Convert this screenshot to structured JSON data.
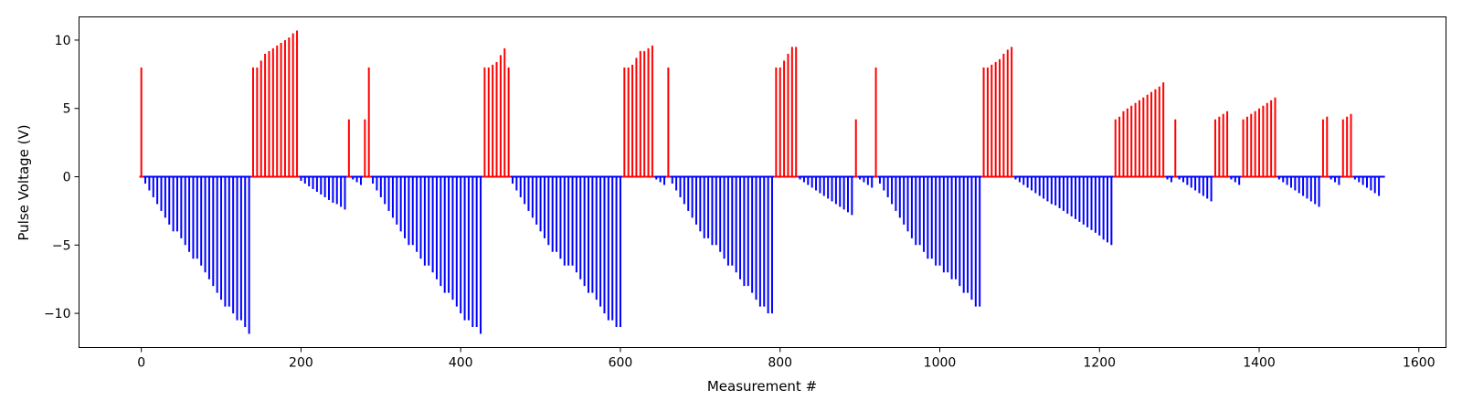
{
  "chart_data": {
    "type": "bar",
    "title": "",
    "xlabel": "Measurement #",
    "ylabel": "Pulse Voltage (V)",
    "xlim": [
      -78,
      1634
    ],
    "ylim": [
      -12.5,
      11.7
    ],
    "xticks": [
      0,
      200,
      400,
      600,
      800,
      1000,
      1200,
      1400,
      1600
    ],
    "yticks": [
      -10,
      -5,
      0,
      5,
      10
    ],
    "grid": false,
    "colors": {
      "positive": "#ff0000",
      "negative": "#0000ff"
    },
    "segments": [
      {
        "sign": "positive",
        "x": [
          0
        ],
        "values": [
          8.0
        ]
      },
      {
        "sign": "negative",
        "x": [
          5,
          10,
          15,
          20,
          25,
          30,
          35,
          40,
          45,
          50,
          55,
          60,
          65,
          70,
          75,
          80,
          85,
          90,
          95,
          100,
          105,
          110,
          115,
          120,
          125,
          130,
          135
        ],
        "values": [
          -0.5,
          -1.0,
          -1.5,
          -2.0,
          -2.5,
          -3.0,
          -3.5,
          -4.0,
          -4.0,
          -4.5,
          -5.0,
          -5.5,
          -6.0,
          -6.0,
          -6.5,
          -7.0,
          -7.5,
          -8.0,
          -8.5,
          -9.0,
          -9.5,
          -9.5,
          -10.0,
          -10.5,
          -10.5,
          -11.0,
          -11.5
        ]
      },
      {
        "sign": "positive",
        "x": [
          140,
          145,
          150,
          155,
          160,
          165,
          170,
          175,
          180,
          185,
          190,
          195
        ],
        "values": [
          8.0,
          8.0,
          8.5,
          9.0,
          9.2,
          9.4,
          9.6,
          9.8,
          10.0,
          10.2,
          10.5,
          10.7
        ]
      },
      {
        "sign": "negative",
        "x": [
          200,
          205,
          210,
          215,
          220,
          225,
          230,
          235,
          240,
          245,
          250,
          255
        ],
        "values": [
          -0.3,
          -0.5,
          -0.7,
          -0.9,
          -1.1,
          -1.3,
          -1.5,
          -1.7,
          -1.9,
          -2.0,
          -2.2,
          -2.4
        ]
      },
      {
        "sign": "positive",
        "x": [
          260
        ],
        "values": [
          4.2
        ]
      },
      {
        "sign": "negative",
        "x": [
          265,
          270,
          275
        ],
        "values": [
          -0.2,
          -0.4,
          -0.6
        ]
      },
      {
        "sign": "positive",
        "x": [
          280,
          285
        ],
        "values": [
          4.2,
          8.0
        ]
      },
      {
        "sign": "negative",
        "x": [
          290,
          295,
          300,
          305,
          310,
          315,
          320,
          325,
          330,
          335,
          340,
          345,
          350,
          355,
          360,
          365,
          370,
          375,
          380,
          385,
          390,
          395,
          400,
          405,
          410,
          415,
          420,
          425
        ],
        "values": [
          -0.5,
          -1.0,
          -1.5,
          -2.0,
          -2.5,
          -3.0,
          -3.5,
          -4.0,
          -4.5,
          -5.0,
          -5.0,
          -5.5,
          -6.0,
          -6.5,
          -6.5,
          -7.0,
          -7.5,
          -8.0,
          -8.5,
          -8.5,
          -9.0,
          -9.5,
          -10.0,
          -10.5,
          -10.5,
          -11.0,
          -11.0,
          -11.5
        ]
      },
      {
        "sign": "positive",
        "x": [
          430,
          435,
          440,
          445,
          450,
          455,
          460
        ],
        "values": [
          8.0,
          8.0,
          8.2,
          8.4,
          8.9,
          9.4,
          8.0
        ]
      },
      {
        "sign": "negative",
        "x": [
          465,
          470,
          475,
          480,
          485,
          490,
          495,
          500,
          505,
          510,
          515,
          520,
          525,
          530,
          535,
          540,
          545,
          550,
          555,
          560,
          565,
          570,
          575,
          580,
          585,
          590,
          595,
          600
        ],
        "values": [
          -0.5,
          -1.0,
          -1.5,
          -2.0,
          -2.5,
          -3.0,
          -3.5,
          -4.0,
          -4.5,
          -5.0,
          -5.5,
          -5.5,
          -6.0,
          -6.5,
          -6.5,
          -6.5,
          -7.0,
          -7.5,
          -8.0,
          -8.5,
          -8.5,
          -9.0,
          -9.5,
          -10.0,
          -10.5,
          -10.5,
          -11.0,
          -11.0
        ]
      },
      {
        "sign": "positive",
        "x": [
          605,
          610,
          615,
          620,
          625,
          630,
          635,
          640
        ],
        "values": [
          8.0,
          8.0,
          8.2,
          8.7,
          9.2,
          9.2,
          9.4,
          9.6
        ]
      },
      {
        "sign": "negative",
        "x": [
          645,
          650,
          655
        ],
        "values": [
          -0.2,
          -0.4,
          -0.6
        ]
      },
      {
        "sign": "positive",
        "x": [
          660
        ],
        "values": [
          8.0
        ]
      },
      {
        "sign": "negative",
        "x": [
          665,
          670,
          675,
          680,
          685,
          690,
          695,
          700,
          705,
          710,
          715,
          720,
          725,
          730,
          735,
          740,
          745,
          750,
          755,
          760,
          765,
          770,
          775,
          780,
          785,
          790
        ],
        "values": [
          -0.5,
          -1.0,
          -1.5,
          -2.0,
          -2.5,
          -3.0,
          -3.5,
          -4.0,
          -4.5,
          -4.5,
          -5.0,
          -5.0,
          -5.5,
          -6.0,
          -6.5,
          -6.5,
          -7.0,
          -7.5,
          -8.0,
          -8.0,
          -8.5,
          -9.0,
          -9.5,
          -9.5,
          -10.0,
          -10.0
        ]
      },
      {
        "sign": "positive",
        "x": [
          795,
          800,
          805,
          810,
          815,
          820
        ],
        "values": [
          8.0,
          8.0,
          8.5,
          9.0,
          9.5,
          9.5
        ]
      },
      {
        "sign": "negative",
        "x": [
          825,
          830,
          835,
          840,
          845,
          850,
          855,
          860,
          865,
          870,
          875,
          880,
          885,
          890
        ],
        "values": [
          -0.2,
          -0.4,
          -0.6,
          -0.8,
          -1.0,
          -1.2,
          -1.4,
          -1.6,
          -1.8,
          -2.0,
          -2.2,
          -2.4,
          -2.6,
          -2.8
        ]
      },
      {
        "sign": "positive",
        "x": [
          895
        ],
        "values": [
          4.2
        ]
      },
      {
        "sign": "negative",
        "x": [
          900,
          905,
          910,
          915
        ],
        "values": [
          -0.2,
          -0.4,
          -0.6,
          -0.8
        ]
      },
      {
        "sign": "positive",
        "x": [
          920
        ],
        "values": [
          8.0
        ]
      },
      {
        "sign": "negative",
        "x": [
          925,
          930,
          935,
          940,
          945,
          950,
          955,
          960,
          965,
          970,
          975,
          980,
          985,
          990,
          995,
          1000,
          1005,
          1010,
          1015,
          1020,
          1025,
          1030,
          1035,
          1040,
          1045,
          1050
        ],
        "values": [
          -0.5,
          -1.0,
          -1.5,
          -2.0,
          -2.5,
          -3.0,
          -3.5,
          -4.0,
          -4.5,
          -5.0,
          -5.0,
          -5.5,
          -6.0,
          -6.0,
          -6.5,
          -6.5,
          -7.0,
          -7.0,
          -7.5,
          -7.5,
          -8.0,
          -8.5,
          -8.5,
          -9.0,
          -9.5,
          -9.5
        ]
      },
      {
        "sign": "positive",
        "x": [
          1055,
          1060,
          1065,
          1070,
          1075,
          1080,
          1085,
          1090
        ],
        "values": [
          8.0,
          8.0,
          8.2,
          8.4,
          8.6,
          9.0,
          9.3,
          9.5
        ]
      },
      {
        "sign": "negative",
        "x": [
          1095,
          1100,
          1105,
          1110,
          1115,
          1120,
          1125,
          1130,
          1135,
          1140,
          1145,
          1150,
          1155,
          1160,
          1165,
          1170,
          1175,
          1180,
          1185,
          1190,
          1195,
          1200,
          1205,
          1210,
          1215
        ],
        "values": [
          -0.2,
          -0.4,
          -0.6,
          -0.8,
          -1.0,
          -1.2,
          -1.4,
          -1.6,
          -1.8,
          -2.0,
          -2.1,
          -2.3,
          -2.5,
          -2.7,
          -2.9,
          -3.1,
          -3.3,
          -3.5,
          -3.7,
          -3.9,
          -4.1,
          -4.3,
          -4.6,
          -4.8,
          -5.0
        ]
      },
      {
        "sign": "positive",
        "x": [
          1220,
          1225,
          1230,
          1235,
          1240,
          1245,
          1250,
          1255,
          1260,
          1265,
          1270,
          1275,
          1280
        ],
        "values": [
          4.2,
          4.4,
          4.8,
          5.0,
          5.2,
          5.4,
          5.6,
          5.8,
          6.0,
          6.2,
          6.4,
          6.6,
          6.9
        ]
      },
      {
        "sign": "negative",
        "x": [
          1285,
          1290
        ],
        "values": [
          -0.2,
          -0.4
        ]
      },
      {
        "sign": "positive",
        "x": [
          1295
        ],
        "values": [
          4.2
        ]
      },
      {
        "sign": "negative",
        "x": [
          1300,
          1305,
          1310,
          1315,
          1320,
          1325,
          1330,
          1335,
          1340
        ],
        "values": [
          -0.2,
          -0.4,
          -0.6,
          -0.8,
          -1.0,
          -1.2,
          -1.4,
          -1.6,
          -1.8
        ]
      },
      {
        "sign": "positive",
        "x": [
          1345,
          1350,
          1355,
          1360
        ],
        "values": [
          4.2,
          4.4,
          4.6,
          4.8
        ]
      },
      {
        "sign": "negative",
        "x": [
          1365,
          1370,
          1375
        ],
        "values": [
          -0.2,
          -0.4,
          -0.6
        ]
      },
      {
        "sign": "positive",
        "x": [
          1380,
          1385,
          1390,
          1395,
          1400,
          1405,
          1410,
          1415,
          1420
        ],
        "values": [
          4.2,
          4.4,
          4.6,
          4.8,
          5.0,
          5.2,
          5.4,
          5.6,
          5.8
        ]
      },
      {
        "sign": "negative",
        "x": [
          1425,
          1430,
          1435,
          1440,
          1445,
          1450,
          1455,
          1460,
          1465,
          1470,
          1475
        ],
        "values": [
          -0.2,
          -0.4,
          -0.6,
          -0.8,
          -1.0,
          -1.2,
          -1.4,
          -1.6,
          -1.8,
          -2.0,
          -2.2
        ]
      },
      {
        "sign": "positive",
        "x": [
          1480,
          1485
        ],
        "values": [
          4.2,
          4.4
        ]
      },
      {
        "sign": "negative",
        "x": [
          1490,
          1495,
          1500
        ],
        "values": [
          -0.2,
          -0.4,
          -0.6
        ]
      },
      {
        "sign": "positive",
        "x": [
          1505,
          1510,
          1515
        ],
        "values": [
          4.2,
          4.4,
          4.6
        ]
      },
      {
        "sign": "negative",
        "x": [
          1520,
          1525,
          1530,
          1535,
          1540,
          1545,
          1550,
          1555
        ],
        "values": [
          -0.2,
          -0.4,
          -0.6,
          -0.8,
          -1.0,
          -1.2,
          -1.4,
          0.0
        ]
      }
    ]
  }
}
